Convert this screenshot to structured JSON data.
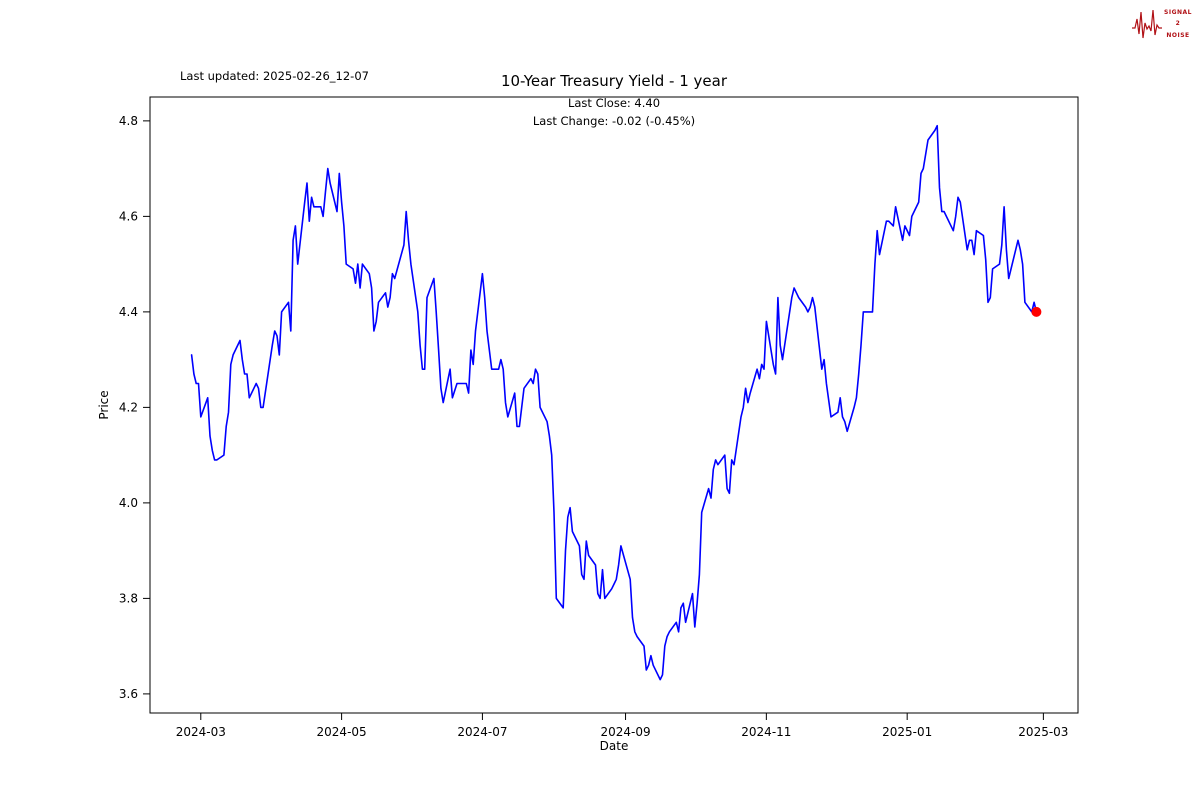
{
  "header": {
    "last_updated": "Last updated: 2025-02-26_12-07"
  },
  "logo": {
    "line1": "SIGNAL",
    "line2": "2",
    "line3": "NOISE",
    "color": "#b11116"
  },
  "chart_data": {
    "type": "line",
    "title": "10-Year Treasury Yield - 1 year",
    "annotations": [
      "Last Close: 4.40",
      "Last Change: -0.02 (-0.45%)"
    ],
    "xlabel": "Date",
    "ylabel": "Price",
    "last_close": 4.4,
    "last_change": -0.02,
    "last_change_pct": "-0.45%",
    "line_color": "#0000ff",
    "marker_color": "#ff0000",
    "grid": false,
    "legend": "none",
    "ylim": [
      3.56,
      4.85
    ],
    "xlim": [
      "2024-02-08",
      "2025-03-16"
    ],
    "y_ticks": [
      3.6,
      3.8,
      4.0,
      4.2,
      4.4,
      4.6,
      4.8
    ],
    "x_ticks": [
      {
        "label": "2024-03",
        "date": "2024-03-01"
      },
      {
        "label": "2024-05",
        "date": "2024-05-01"
      },
      {
        "label": "2024-07",
        "date": "2024-07-01"
      },
      {
        "label": "2024-09",
        "date": "2024-09-01"
      },
      {
        "label": "2024-11",
        "date": "2024-11-01"
      },
      {
        "label": "2025-01",
        "date": "2025-01-01"
      },
      {
        "label": "2025-03",
        "date": "2025-03-01"
      }
    ],
    "points": [
      [
        "2024-02-26",
        4.31
      ],
      [
        "2024-02-27",
        4.27
      ],
      [
        "2024-02-28",
        4.25
      ],
      [
        "2024-02-29",
        4.25
      ],
      [
        "2024-03-01",
        4.18
      ],
      [
        "2024-03-04",
        4.22
      ],
      [
        "2024-03-05",
        4.14
      ],
      [
        "2024-03-06",
        4.11
      ],
      [
        "2024-03-07",
        4.09
      ],
      [
        "2024-03-08",
        4.09
      ],
      [
        "2024-03-11",
        4.1
      ],
      [
        "2024-03-12",
        4.16
      ],
      [
        "2024-03-13",
        4.19
      ],
      [
        "2024-03-14",
        4.29
      ],
      [
        "2024-03-15",
        4.31
      ],
      [
        "2024-03-18",
        4.34
      ],
      [
        "2024-03-19",
        4.3
      ],
      [
        "2024-03-20",
        4.27
      ],
      [
        "2024-03-21",
        4.27
      ],
      [
        "2024-03-22",
        4.22
      ],
      [
        "2024-03-25",
        4.25
      ],
      [
        "2024-03-26",
        4.24
      ],
      [
        "2024-03-27",
        4.2
      ],
      [
        "2024-03-28",
        4.2
      ],
      [
        "2024-04-01",
        4.33
      ],
      [
        "2024-04-02",
        4.36
      ],
      [
        "2024-04-03",
        4.35
      ],
      [
        "2024-04-04",
        4.31
      ],
      [
        "2024-04-05",
        4.4
      ],
      [
        "2024-04-08",
        4.42
      ],
      [
        "2024-04-09",
        4.36
      ],
      [
        "2024-04-10",
        4.55
      ],
      [
        "2024-04-11",
        4.58
      ],
      [
        "2024-04-12",
        4.5
      ],
      [
        "2024-04-15",
        4.63
      ],
      [
        "2024-04-16",
        4.67
      ],
      [
        "2024-04-17",
        4.59
      ],
      [
        "2024-04-18",
        4.64
      ],
      [
        "2024-04-19",
        4.62
      ],
      [
        "2024-04-22",
        4.62
      ],
      [
        "2024-04-23",
        4.6
      ],
      [
        "2024-04-24",
        4.65
      ],
      [
        "2024-04-25",
        4.7
      ],
      [
        "2024-04-26",
        4.67
      ],
      [
        "2024-04-29",
        4.61
      ],
      [
        "2024-04-30",
        4.69
      ],
      [
        "2024-05-01",
        4.63
      ],
      [
        "2024-05-02",
        4.58
      ],
      [
        "2024-05-03",
        4.5
      ],
      [
        "2024-05-06",
        4.49
      ],
      [
        "2024-05-07",
        4.46
      ],
      [
        "2024-05-08",
        4.5
      ],
      [
        "2024-05-09",
        4.45
      ],
      [
        "2024-05-10",
        4.5
      ],
      [
        "2024-05-13",
        4.48
      ],
      [
        "2024-05-14",
        4.45
      ],
      [
        "2024-05-15",
        4.36
      ],
      [
        "2024-05-16",
        4.38
      ],
      [
        "2024-05-17",
        4.42
      ],
      [
        "2024-05-20",
        4.44
      ],
      [
        "2024-05-21",
        4.41
      ],
      [
        "2024-05-22",
        4.43
      ],
      [
        "2024-05-23",
        4.48
      ],
      [
        "2024-05-24",
        4.47
      ],
      [
        "2024-05-28",
        4.54
      ],
      [
        "2024-05-29",
        4.61
      ],
      [
        "2024-05-30",
        4.55
      ],
      [
        "2024-05-31",
        4.5
      ],
      [
        "2024-06-03",
        4.4
      ],
      [
        "2024-06-04",
        4.33
      ],
      [
        "2024-06-05",
        4.28
      ],
      [
        "2024-06-06",
        4.28
      ],
      [
        "2024-06-07",
        4.43
      ],
      [
        "2024-06-10",
        4.47
      ],
      [
        "2024-06-11",
        4.4
      ],
      [
        "2024-06-12",
        4.32
      ],
      [
        "2024-06-13",
        4.24
      ],
      [
        "2024-06-14",
        4.21
      ],
      [
        "2024-06-17",
        4.28
      ],
      [
        "2024-06-18",
        4.22
      ],
      [
        "2024-06-20",
        4.25
      ],
      [
        "2024-06-21",
        4.25
      ],
      [
        "2024-06-24",
        4.25
      ],
      [
        "2024-06-25",
        4.23
      ],
      [
        "2024-06-26",
        4.32
      ],
      [
        "2024-06-27",
        4.29
      ],
      [
        "2024-06-28",
        4.36
      ],
      [
        "2024-07-01",
        4.48
      ],
      [
        "2024-07-02",
        4.43
      ],
      [
        "2024-07-03",
        4.36
      ],
      [
        "2024-07-05",
        4.28
      ],
      [
        "2024-07-08",
        4.28
      ],
      [
        "2024-07-09",
        4.3
      ],
      [
        "2024-07-10",
        4.28
      ],
      [
        "2024-07-11",
        4.21
      ],
      [
        "2024-07-12",
        4.18
      ],
      [
        "2024-07-15",
        4.23
      ],
      [
        "2024-07-16",
        4.16
      ],
      [
        "2024-07-17",
        4.16
      ],
      [
        "2024-07-18",
        4.2
      ],
      [
        "2024-07-19",
        4.24
      ],
      [
        "2024-07-22",
        4.26
      ],
      [
        "2024-07-23",
        4.25
      ],
      [
        "2024-07-24",
        4.28
      ],
      [
        "2024-07-25",
        4.27
      ],
      [
        "2024-07-26",
        4.2
      ],
      [
        "2024-07-29",
        4.17
      ],
      [
        "2024-07-30",
        4.14
      ],
      [
        "2024-07-31",
        4.1
      ],
      [
        "2024-08-01",
        3.98
      ],
      [
        "2024-08-02",
        3.8
      ],
      [
        "2024-08-05",
        3.78
      ],
      [
        "2024-08-06",
        3.9
      ],
      [
        "2024-08-07",
        3.97
      ],
      [
        "2024-08-08",
        3.99
      ],
      [
        "2024-08-09",
        3.94
      ],
      [
        "2024-08-12",
        3.91
      ],
      [
        "2024-08-13",
        3.85
      ],
      [
        "2024-08-14",
        3.84
      ],
      [
        "2024-08-15",
        3.92
      ],
      [
        "2024-08-16",
        3.89
      ],
      [
        "2024-08-19",
        3.87
      ],
      [
        "2024-08-20",
        3.81
      ],
      [
        "2024-08-21",
        3.8
      ],
      [
        "2024-08-22",
        3.86
      ],
      [
        "2024-08-23",
        3.8
      ],
      [
        "2024-08-26",
        3.82
      ],
      [
        "2024-08-27",
        3.83
      ],
      [
        "2024-08-28",
        3.84
      ],
      [
        "2024-08-29",
        3.87
      ],
      [
        "2024-08-30",
        3.91
      ],
      [
        "2024-09-03",
        3.84
      ],
      [
        "2024-09-04",
        3.76
      ],
      [
        "2024-09-05",
        3.73
      ],
      [
        "2024-09-06",
        3.72
      ],
      [
        "2024-09-09",
        3.7
      ],
      [
        "2024-09-10",
        3.65
      ],
      [
        "2024-09-11",
        3.66
      ],
      [
        "2024-09-12",
        3.68
      ],
      [
        "2024-09-13",
        3.66
      ],
      [
        "2024-09-16",
        3.63
      ],
      [
        "2024-09-17",
        3.64
      ],
      [
        "2024-09-18",
        3.7
      ],
      [
        "2024-09-19",
        3.72
      ],
      [
        "2024-09-20",
        3.73
      ],
      [
        "2024-09-23",
        3.75
      ],
      [
        "2024-09-24",
        3.73
      ],
      [
        "2024-09-25",
        3.78
      ],
      [
        "2024-09-26",
        3.79
      ],
      [
        "2024-09-27",
        3.75
      ],
      [
        "2024-09-30",
        3.81
      ],
      [
        "2024-10-01",
        3.74
      ],
      [
        "2024-10-02",
        3.79
      ],
      [
        "2024-10-03",
        3.85
      ],
      [
        "2024-10-04",
        3.98
      ],
      [
        "2024-10-07",
        4.03
      ],
      [
        "2024-10-08",
        4.01
      ],
      [
        "2024-10-09",
        4.07
      ],
      [
        "2024-10-10",
        4.09
      ],
      [
        "2024-10-11",
        4.08
      ],
      [
        "2024-10-14",
        4.1
      ],
      [
        "2024-10-15",
        4.03
      ],
      [
        "2024-10-16",
        4.02
      ],
      [
        "2024-10-17",
        4.09
      ],
      [
        "2024-10-18",
        4.08
      ],
      [
        "2024-10-21",
        4.18
      ],
      [
        "2024-10-22",
        4.2
      ],
      [
        "2024-10-23",
        4.24
      ],
      [
        "2024-10-24",
        4.21
      ],
      [
        "2024-10-25",
        4.23
      ],
      [
        "2024-10-28",
        4.28
      ],
      [
        "2024-10-29",
        4.26
      ],
      [
        "2024-10-30",
        4.29
      ],
      [
        "2024-10-31",
        4.28
      ],
      [
        "2024-11-01",
        4.38
      ],
      [
        "2024-11-04",
        4.29
      ],
      [
        "2024-11-05",
        4.27
      ],
      [
        "2024-11-06",
        4.43
      ],
      [
        "2024-11-07",
        4.33
      ],
      [
        "2024-11-08",
        4.3
      ],
      [
        "2024-11-12",
        4.43
      ],
      [
        "2024-11-13",
        4.45
      ],
      [
        "2024-11-14",
        4.44
      ],
      [
        "2024-11-15",
        4.43
      ],
      [
        "2024-11-18",
        4.41
      ],
      [
        "2024-11-19",
        4.4
      ],
      [
        "2024-11-20",
        4.41
      ],
      [
        "2024-11-21",
        4.43
      ],
      [
        "2024-11-22",
        4.41
      ],
      [
        "2024-11-25",
        4.28
      ],
      [
        "2024-11-26",
        4.3
      ],
      [
        "2024-11-27",
        4.25
      ],
      [
        "2024-11-29",
        4.18
      ],
      [
        "2024-12-02",
        4.19
      ],
      [
        "2024-12-03",
        4.22
      ],
      [
        "2024-12-04",
        4.18
      ],
      [
        "2024-12-05",
        4.17
      ],
      [
        "2024-12-06",
        4.15
      ],
      [
        "2024-12-09",
        4.2
      ],
      [
        "2024-12-10",
        4.22
      ],
      [
        "2024-12-11",
        4.27
      ],
      [
        "2024-12-12",
        4.33
      ],
      [
        "2024-12-13",
        4.4
      ],
      [
        "2024-12-16",
        4.4
      ],
      [
        "2024-12-17",
        4.4
      ],
      [
        "2024-12-18",
        4.5
      ],
      [
        "2024-12-19",
        4.57
      ],
      [
        "2024-12-20",
        4.52
      ],
      [
        "2024-12-23",
        4.59
      ],
      [
        "2024-12-24",
        4.59
      ],
      [
        "2024-12-26",
        4.58
      ],
      [
        "2024-12-27",
        4.62
      ],
      [
        "2024-12-30",
        4.55
      ],
      [
        "2024-12-31",
        4.58
      ],
      [
        "2025-01-02",
        4.56
      ],
      [
        "2025-01-03",
        4.6
      ],
      [
        "2025-01-06",
        4.63
      ],
      [
        "2025-01-07",
        4.69
      ],
      [
        "2025-01-08",
        4.7
      ],
      [
        "2025-01-10",
        4.76
      ],
      [
        "2025-01-13",
        4.78
      ],
      [
        "2025-01-14",
        4.79
      ],
      [
        "2025-01-15",
        4.66
      ],
      [
        "2025-01-16",
        4.61
      ],
      [
        "2025-01-17",
        4.61
      ],
      [
        "2025-01-21",
        4.57
      ],
      [
        "2025-01-22",
        4.6
      ],
      [
        "2025-01-23",
        4.64
      ],
      [
        "2025-01-24",
        4.63
      ],
      [
        "2025-01-27",
        4.53
      ],
      [
        "2025-01-28",
        4.55
      ],
      [
        "2025-01-29",
        4.55
      ],
      [
        "2025-01-30",
        4.52
      ],
      [
        "2025-01-31",
        4.57
      ],
      [
        "2025-02-03",
        4.56
      ],
      [
        "2025-02-04",
        4.51
      ],
      [
        "2025-02-05",
        4.42
      ],
      [
        "2025-02-06",
        4.43
      ],
      [
        "2025-02-07",
        4.49
      ],
      [
        "2025-02-10",
        4.5
      ],
      [
        "2025-02-11",
        4.54
      ],
      [
        "2025-02-12",
        4.62
      ],
      [
        "2025-02-13",
        4.53
      ],
      [
        "2025-02-14",
        4.47
      ],
      [
        "2025-02-18",
        4.55
      ],
      [
        "2025-02-19",
        4.53
      ],
      [
        "2025-02-20",
        4.5
      ],
      [
        "2025-02-21",
        4.42
      ],
      [
        "2025-02-24",
        4.4
      ],
      [
        "2025-02-25",
        4.42
      ],
      [
        "2025-02-26",
        4.4
      ]
    ]
  }
}
